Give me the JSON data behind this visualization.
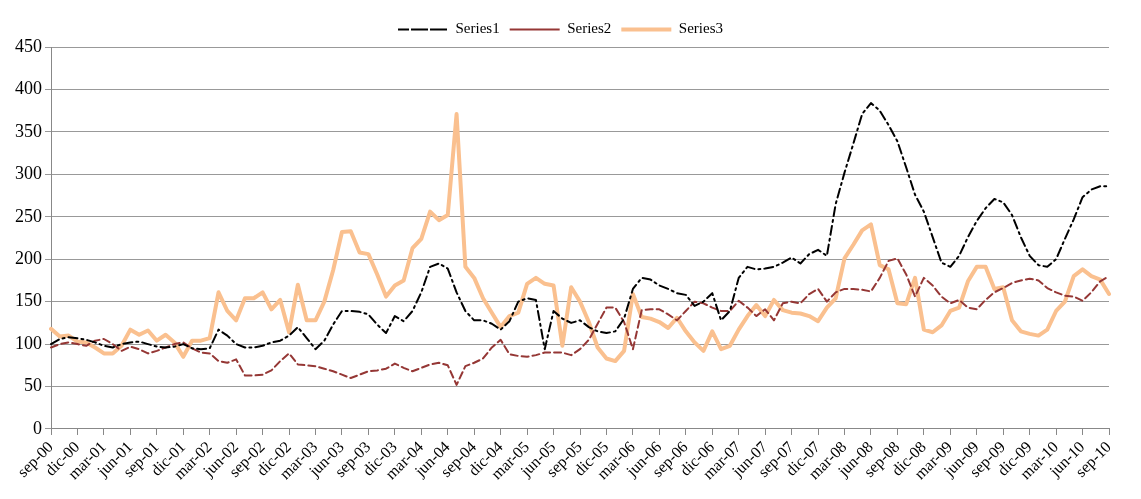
{
  "chart_data": {
    "type": "line",
    "categories": [
      "sep-00",
      null,
      null,
      "dic-00",
      null,
      null,
      "mar-01",
      null,
      null,
      "jun-01",
      null,
      null,
      "sep-01",
      null,
      null,
      "dic-01",
      null,
      null,
      "mar-02",
      null,
      null,
      "jun-02",
      null,
      null,
      "sep-02",
      null,
      null,
      "dic-02",
      null,
      null,
      "mar-03",
      null,
      null,
      "jun-03",
      null,
      null,
      "sep-03",
      null,
      null,
      "dic-03",
      null,
      null,
      "mar-04",
      null,
      null,
      "jun-04",
      null,
      null,
      "sep-04",
      null,
      null,
      "dic-04",
      null,
      null,
      "mar-05",
      null,
      null,
      "jun-05",
      null,
      null,
      "sep-05",
      null,
      null,
      "dic-05",
      null,
      null,
      "mar-06",
      null,
      null,
      "jun-06",
      null,
      null,
      "sep-06",
      null,
      null,
      "dic-06",
      null,
      null,
      "mar-07",
      null,
      null,
      "jun-07",
      null,
      null,
      "sep-07",
      null,
      null,
      "dic-07",
      null,
      null,
      "mar-08",
      null,
      null,
      "jun-08",
      null,
      null,
      "sep-08",
      null,
      null,
      "dic-08",
      null,
      null,
      "mar-09",
      null,
      null,
      "jun-09",
      null,
      null,
      "sep-09",
      null,
      null,
      "dic-09",
      null,
      null,
      "mar-10",
      null,
      null,
      "jun-10",
      null,
      null,
      "sep-10"
    ],
    "series": [
      {
        "name": "Series1",
        "color": "#000000",
        "line_style": "dashdot",
        "values": [
          100,
          106,
          108,
          107,
          105,
          102,
          98,
          96,
          100,
          102,
          103,
          100,
          97,
          96,
          97,
          100,
          95,
          94,
          95,
          117,
          110,
          100,
          96,
          96,
          98,
          102,
          104,
          110,
          120,
          107,
          94,
          104,
          123,
          139,
          139,
          138,
          135,
          123,
          113,
          133,
          127,
          139,
          161,
          191,
          195,
          189,
          161,
          139,
          128,
          128,
          124,
          117,
          127,
          150,
          154,
          152,
          94,
          139,
          130,
          125,
          128,
          120,
          115,
          113,
          115,
          130,
          165,
          178,
          176,
          169,
          165,
          160,
          158,
          145,
          150,
          160,
          128,
          139,
          178,
          191,
          188,
          189,
          191,
          196,
          202,
          195,
          206,
          211,
          204,
          265,
          302,
          336,
          371,
          384,
          375,
          358,
          339,
          308,
          276,
          256,
          226,
          196,
          191,
          204,
          226,
          245,
          260,
          271,
          267,
          252,
          226,
          204,
          193,
          191,
          200,
          224,
          247,
          273,
          282,
          286,
          286
        ]
      },
      {
        "name": "Series2",
        "color": "#953735",
        "line_style": "dashed",
        "values": [
          96,
          100,
          102,
          100,
          98,
          104,
          106,
          100,
          92,
          97,
          94,
          89,
          92,
          96,
          100,
          102,
          95,
          90,
          89,
          80,
          78,
          82,
          63,
          63,
          64,
          69,
          80,
          89,
          76,
          75,
          74,
          71,
          68,
          64,
          60,
          64,
          68,
          69,
          71,
          77,
          72,
          68,
          72,
          76,
          78,
          75,
          52,
          74,
          78,
          83,
          96,
          105,
          88,
          86,
          85,
          87,
          90,
          90,
          90,
          87,
          94,
          105,
          124,
          143,
          143,
          126,
          94,
          140,
          141,
          141,
          135,
          128,
          139,
          150,
          148,
          143,
          139,
          139,
          151,
          143,
          133,
          141,
          128,
          148,
          150,
          148,
          159,
          165,
          150,
          161,
          165,
          165,
          164,
          162,
          178,
          198,
          201,
          182,
          156,
          178,
          169,
          156,
          148,
          152,
          143,
          141,
          152,
          161,
          166,
          172,
          175,
          177,
          175,
          166,
          161,
          157,
          156,
          151,
          161,
          174,
          180
        ]
      },
      {
        "name": "Series3",
        "color": "#fac08f",
        "line_style": "solid",
        "values": [
          118,
          109,
          110,
          103,
          102,
          96,
          89,
          89,
          98,
          117,
          111,
          116,
          104,
          111,
          102,
          85,
          104,
          104,
          107,
          161,
          139,
          128,
          154,
          154,
          161,
          141,
          152,
          114,
          170,
          128,
          128,
          150,
          187,
          232,
          233,
          208,
          206,
          182,
          156,
          169,
          175,
          213,
          224,
          256,
          246,
          252,
          371,
          191,
          178,
          154,
          137,
          120,
          133,
          137,
          171,
          178,
          171,
          169,
          98,
          167,
          150,
          126,
          96,
          83,
          80,
          92,
          159,
          132,
          130,
          126,
          119,
          131,
          115,
          102,
          92,
          115,
          94,
          98,
          117,
          133,
          146,
          133,
          152,
          140,
          137,
          136,
          133,
          127,
          143,
          154,
          201,
          217,
          234,
          241,
          193,
          188,
          148,
          147,
          178,
          117,
          114,
          122,
          139,
          143,
          174,
          191,
          191,
          165,
          167,
          128,
          115,
          112,
          110,
          117,
          139,
          150,
          180,
          188,
          180,
          176,
          159
        ]
      }
    ],
    "ylim": [
      0,
      450
    ],
    "yticks": [
      0,
      50,
      100,
      150,
      200,
      250,
      300,
      350,
      400,
      450
    ],
    "grid": "y",
    "legend": "top",
    "marker": "none"
  }
}
